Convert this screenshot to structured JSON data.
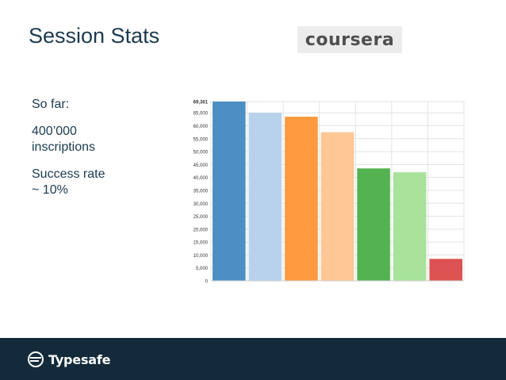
{
  "slide": {
    "title": "Session Stats",
    "logo_text": "coursera",
    "bullets": {
      "so_far": "So far:",
      "count_line1": "400’000",
      "count_line2": "inscriptions",
      "rate_line1": "Success rate",
      "rate_line2": "~ 10%"
    },
    "footer_brand": "Typesafe"
  },
  "colors": {
    "title": "#1a3a4f",
    "footer_bg": "#132a3a",
    "bars": [
      "#4d8fc4",
      "#b9d2ec",
      "#ff9a3f",
      "#ffc796",
      "#55b250",
      "#a8e29b",
      "#dd5252"
    ]
  },
  "chart_data": {
    "type": "bar",
    "categories": [
      "",
      "",
      "",
      "",
      "",
      "",
      ""
    ],
    "values": [
      69361,
      65000,
      63500,
      57500,
      43500,
      42000,
      8500
    ],
    "ylim": [
      0,
      69361
    ],
    "yticks": [
      0,
      5000,
      10000,
      15000,
      20000,
      25000,
      30000,
      35000,
      40000,
      45000,
      50000,
      55000,
      60000,
      65000
    ],
    "ytick_labels": [
      "0",
      "5,000",
      "10,000",
      "15,000",
      "20,000",
      "25,000",
      "30,000",
      "35,000",
      "40,000",
      "45,000",
      "50,000",
      "55,000",
      "60,000",
      "65,000"
    ],
    "ymax_label": "69,361",
    "grid": true
  }
}
